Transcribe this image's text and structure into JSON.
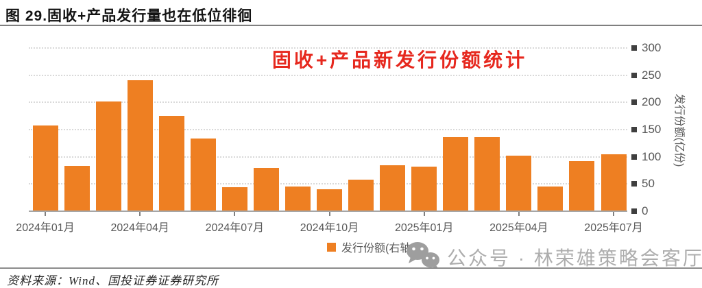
{
  "figure": {
    "title": "图 29.固收+产品发行量也在低位徘徊",
    "source": "资料来源：Wind、国投证券证券研究所"
  },
  "watermark": {
    "icon": "wechat-icon",
    "text": "公众号 · 林荣雄策略会客厅"
  },
  "colors": {
    "bar": "#ee7f22",
    "chart_title": "#e6281e",
    "axis_text": "#595959",
    "watermark_text": "#adadad"
  },
  "chart_data": {
    "type": "bar",
    "title": "固收+产品新发行份额统计",
    "categories": [
      "2024年01月",
      "2024年02月",
      "2024年03月",
      "2024年04月",
      "2024年05月",
      "2024年06月",
      "2024年07月",
      "2024年08月",
      "2024年09月",
      "2024年10月",
      "2024年11月",
      "2024年12月",
      "2025年01月",
      "2025年02月",
      "2025年03月",
      "2025年04月",
      "2025年05月",
      "2025年06月",
      "2025年07月"
    ],
    "values": [
      158,
      83,
      202,
      241,
      175,
      133,
      44,
      79,
      46,
      40,
      58,
      85,
      82,
      136,
      136,
      102,
      46,
      92,
      105
    ],
    "x_tick_labels": [
      "2024年01月",
      "2024年04月",
      "2024年07月",
      "2024年10月",
      "2025年01月",
      "2025年04月",
      "2025年07月"
    ],
    "x_tick_every": 3,
    "ylabel": "发行份额(亿份)",
    "y_axis_side": "right",
    "ylim": [
      0,
      300
    ],
    "y_ticks": [
      0,
      50,
      100,
      150,
      200,
      250,
      300
    ],
    "legend": [
      "发行份额(右轴)"
    ],
    "legend_position": "bottom",
    "grid": "dotted-horizontal"
  }
}
